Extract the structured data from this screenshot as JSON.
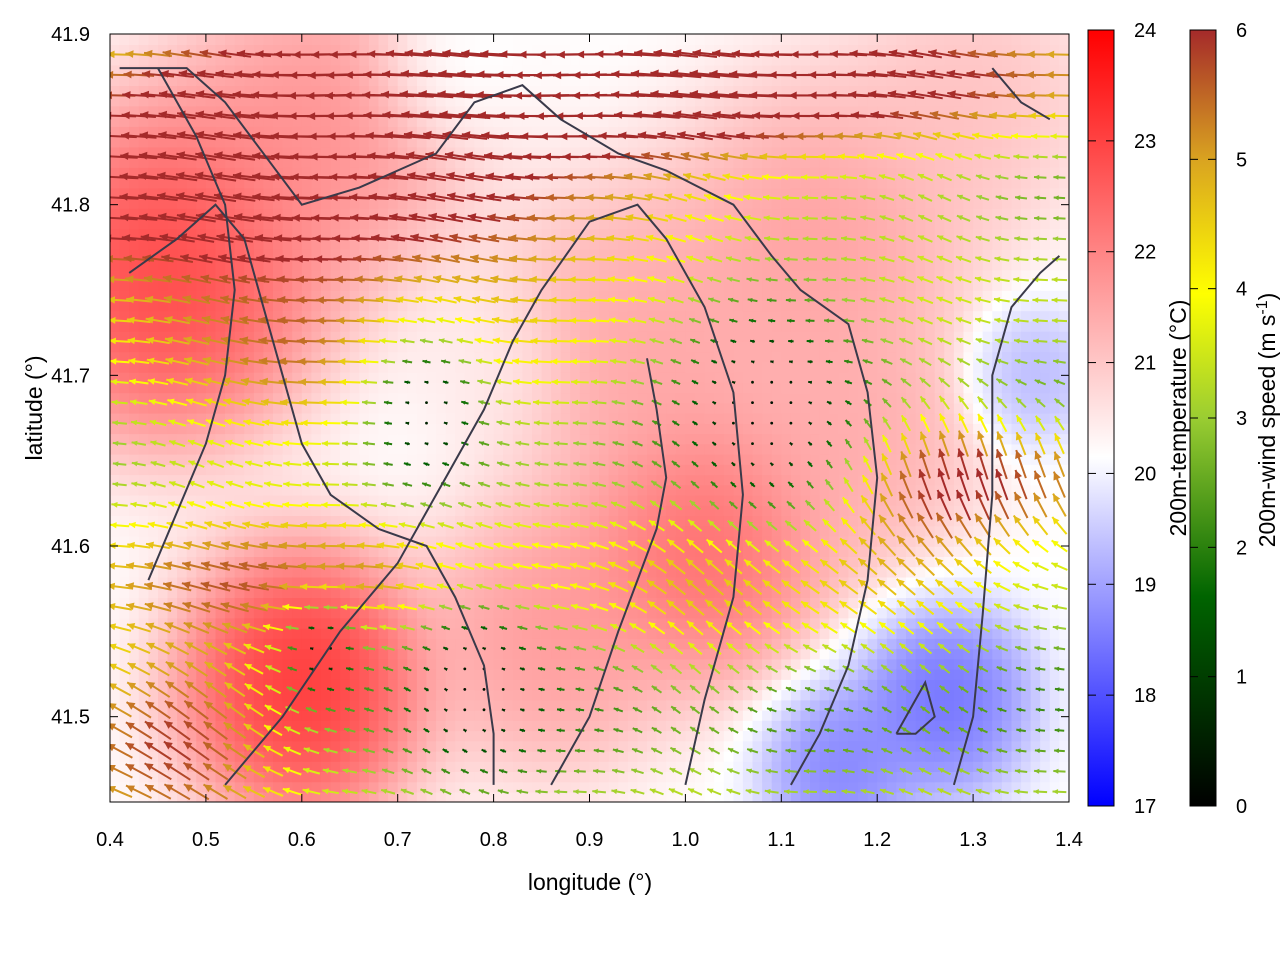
{
  "chart_data": {
    "type": "heatmap",
    "title": "",
    "xlabel": "longitude (°)",
    "ylabel": "latitude (°)",
    "xlim": [
      0.4,
      1.4
    ],
    "ylim": [
      41.45,
      41.9
    ],
    "x_ticks": [
      0.4,
      0.5,
      0.6,
      0.7,
      0.8,
      0.9,
      1.0,
      1.1,
      1.2,
      1.3,
      1.4
    ],
    "x_tick_labels": [
      "0.4",
      "0.5",
      "0.6",
      "0.7",
      "0.8",
      "0.9",
      "1.0",
      "1.1",
      "1.2",
      "1.3",
      "1.4"
    ],
    "y_ticks": [
      41.5,
      41.6,
      41.7,
      41.8,
      41.9
    ],
    "y_tick_labels": [
      "41.5",
      "41.6",
      "41.7",
      "41.8",
      "41.9"
    ],
    "grid": false,
    "temperature": {
      "label": "200m-temperature (°C)",
      "range": [
        17,
        24
      ],
      "ticks": [
        17,
        18,
        19,
        20,
        21,
        22,
        23,
        24
      ],
      "tick_labels": [
        "17",
        "18",
        "19",
        "20",
        "21",
        "22",
        "23",
        "24"
      ],
      "colors": [
        "#0000ff",
        "#ffffff",
        "#ff0000"
      ],
      "field_centers": [
        {
          "lon": 0.46,
          "lat": 41.76,
          "value": 23.8,
          "spread": 0.12
        },
        {
          "lon": 0.6,
          "lat": 41.52,
          "value": 24.0,
          "spread": 0.1
        },
        {
          "lon": 0.62,
          "lat": 41.84,
          "value": 22.6,
          "spread": 0.12
        },
        {
          "lon": 1.02,
          "lat": 41.6,
          "value": 23.2,
          "spread": 0.1
        },
        {
          "lon": 0.95,
          "lat": 41.72,
          "value": 22.3,
          "spread": 0.12
        },
        {
          "lon": 0.86,
          "lat": 41.55,
          "value": 22.5,
          "spread": 0.1
        },
        {
          "lon": 1.14,
          "lat": 41.78,
          "value": 22.4,
          "spread": 0.12
        },
        {
          "lon": 1.18,
          "lat": 41.66,
          "value": 22.2,
          "spread": 0.1
        },
        {
          "lon": 1.3,
          "lat": 41.86,
          "value": 21.9,
          "spread": 0.1
        },
        {
          "lon": 1.27,
          "lat": 41.51,
          "value": 18.2,
          "spread": 0.07
        },
        {
          "lon": 1.16,
          "lat": 41.47,
          "value": 18.6,
          "spread": 0.06
        },
        {
          "lon": 1.36,
          "lat": 41.7,
          "value": 19.6,
          "spread": 0.05
        },
        {
          "lon": 0.75,
          "lat": 41.88,
          "value": 20.8,
          "spread": 0.06
        },
        {
          "lon": 0.8,
          "lat": 41.71,
          "value": 21.2,
          "spread": 0.06
        }
      ]
    },
    "wind_speed": {
      "label": "200m-wind speed (m s-1)",
      "label_main": "200m-wind speed (m s",
      "label_sup": "-1",
      "label_end": ")",
      "range": [
        0,
        6
      ],
      "ticks": [
        0,
        1,
        2,
        3,
        4,
        5,
        6
      ],
      "tick_labels": [
        "0",
        "1",
        "2",
        "3",
        "4",
        "5",
        "6"
      ],
      "colors": [
        "#000000",
        "#006400",
        "#9acd32",
        "#ffff00",
        "#daa520",
        "#a52a2a"
      ]
    },
    "wind_grid": {
      "lon_step": 0.02,
      "lat_step": 0.012
    },
    "wind_features": [
      {
        "kind": "jet",
        "lon": 0.55,
        "lat": 41.81,
        "u": -5.6,
        "v": 0.1,
        "extent": 0.45,
        "width": 0.05
      },
      {
        "kind": "jet",
        "lon": 0.75,
        "lat": 41.87,
        "u": -4.5,
        "v": -0.4,
        "extent": 0.35,
        "width": 0.035
      },
      {
        "kind": "jet",
        "lon": 1.1,
        "lat": 41.87,
        "u": -4.0,
        "v": 0.0,
        "extent": 0.4,
        "width": 0.04
      },
      {
        "kind": "jet",
        "lon": 0.45,
        "lat": 41.49,
        "u": -3.0,
        "v": 2.5,
        "extent": 0.15,
        "width": 0.06
      },
      {
        "kind": "jet",
        "lon": 1.33,
        "lat": 41.64,
        "u": 0.0,
        "v": 5.0,
        "extent": 0.2,
        "width": 0.04
      },
      {
        "kind": "jet",
        "lon": 0.65,
        "lat": 41.7,
        "u": -3.2,
        "v": 0.0,
        "extent": 0.25,
        "width": 0.06
      },
      {
        "kind": "jet",
        "lon": 0.6,
        "lat": 41.58,
        "u": -2.6,
        "v": 0.0,
        "extent": 0.25,
        "width": 0.04
      },
      {
        "kind": "jet",
        "lon": 1.1,
        "lat": 41.58,
        "u": -1.0,
        "v": 2.5,
        "extent": 0.2,
        "width": 0.05
      },
      {
        "kind": "calm",
        "lon": 1.08,
        "lat": 41.68,
        "radius": 0.12
      },
      {
        "kind": "calm",
        "lon": 0.73,
        "lat": 41.68,
        "radius": 0.09
      },
      {
        "kind": "calm",
        "lon": 0.78,
        "lat": 41.52,
        "radius": 0.09
      },
      {
        "kind": "calm",
        "lon": 0.62,
        "lat": 41.54,
        "radius": 0.05
      }
    ],
    "contours": [
      [
        [
          0.41,
          41.88
        ],
        [
          0.48,
          41.88
        ],
        [
          0.52,
          41.86
        ],
        [
          0.6,
          41.8
        ],
        [
          0.66,
          41.81
        ],
        [
          0.74,
          41.83
        ],
        [
          0.78,
          41.86
        ],
        [
          0.83,
          41.87
        ],
        [
          0.87,
          41.85
        ],
        [
          0.93,
          41.83
        ],
        [
          0.98,
          41.82
        ],
        [
          1.05,
          41.8
        ],
        [
          1.09,
          41.77
        ],
        [
          1.12,
          41.75
        ],
        [
          1.17,
          41.73
        ],
        [
          1.19,
          41.69
        ],
        [
          1.2,
          41.64
        ],
        [
          1.19,
          41.58
        ],
        [
          1.17,
          41.53
        ],
        [
          1.14,
          41.49
        ],
        [
          1.11,
          41.46
        ]
      ],
      [
        [
          0.52,
          41.46
        ],
        [
          0.58,
          41.5
        ],
        [
          0.64,
          41.55
        ],
        [
          0.7,
          41.59
        ],
        [
          0.75,
          41.64
        ],
        [
          0.79,
          41.68
        ],
        [
          0.82,
          41.72
        ],
        [
          0.85,
          41.75
        ],
        [
          0.9,
          41.79
        ],
        [
          0.95,
          41.8
        ],
        [
          0.98,
          41.78
        ],
        [
          1.02,
          41.74
        ],
        [
          1.05,
          41.69
        ],
        [
          1.06,
          41.63
        ],
        [
          1.05,
          41.57
        ],
        [
          1.02,
          41.51
        ],
        [
          1.0,
          41.46
        ]
      ],
      [
        [
          0.42,
          41.76
        ],
        [
          0.47,
          41.78
        ],
        [
          0.51,
          41.8
        ],
        [
          0.54,
          41.78
        ],
        [
          0.56,
          41.74
        ],
        [
          0.58,
          41.7
        ],
        [
          0.6,
          41.66
        ],
        [
          0.63,
          41.63
        ],
        [
          0.68,
          41.61
        ],
        [
          0.73,
          41.6
        ],
        [
          0.76,
          41.57
        ],
        [
          0.79,
          41.53
        ],
        [
          0.8,
          41.49
        ],
        [
          0.8,
          41.46
        ]
      ],
      [
        [
          0.44,
          41.58
        ],
        [
          0.47,
          41.62
        ],
        [
          0.5,
          41.66
        ],
        [
          0.52,
          41.7
        ],
        [
          0.53,
          41.75
        ],
        [
          0.52,
          41.8
        ],
        [
          0.49,
          41.84
        ],
        [
          0.45,
          41.88
        ]
      ],
      [
        [
          1.28,
          41.46
        ],
        [
          1.3,
          41.5
        ],
        [
          1.31,
          41.56
        ],
        [
          1.32,
          41.63
        ],
        [
          1.32,
          41.7
        ],
        [
          1.34,
          41.74
        ],
        [
          1.37,
          41.76
        ],
        [
          1.39,
          41.77
        ]
      ],
      [
        [
          0.86,
          41.46
        ],
        [
          0.9,
          41.5
        ],
        [
          0.93,
          41.55
        ],
        [
          0.95,
          41.58
        ],
        [
          0.97,
          41.61
        ],
        [
          0.98,
          41.64
        ],
        [
          0.97,
          41.68
        ],
        [
          0.96,
          41.71
        ]
      ],
      [
        [
          1.22,
          41.49
        ],
        [
          1.25,
          41.52
        ],
        [
          1.26,
          41.5
        ],
        [
          1.24,
          41.49
        ],
        [
          1.22,
          41.49
        ]
      ],
      [
        [
          1.32,
          41.88
        ],
        [
          1.35,
          41.86
        ],
        [
          1.38,
          41.85
        ]
      ]
    ]
  }
}
